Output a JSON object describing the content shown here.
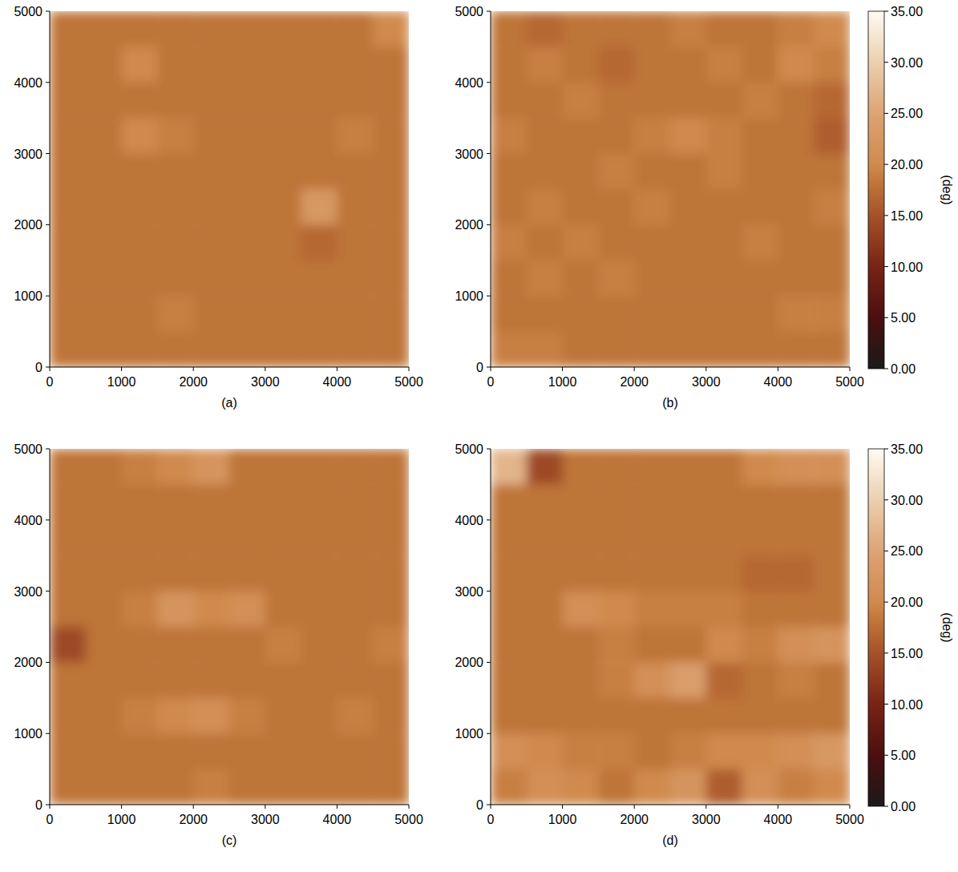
{
  "chart_data": [
    {
      "type": "heatmap",
      "title": "(a)",
      "xlim": [
        0,
        5000
      ],
      "ylim": [
        0,
        5000
      ],
      "xticks": [
        0,
        1000,
        2000,
        3000,
        4000,
        5000
      ],
      "yticks": [
        0,
        1000,
        2000,
        3000,
        4000,
        5000
      ],
      "colorbar_range": [
        0,
        35
      ],
      "cells": [
        [
          18,
          18,
          18,
          18,
          18,
          18,
          18,
          18,
          18,
          20
        ],
        [
          18,
          18,
          20,
          18,
          18,
          18,
          18,
          18,
          18,
          18
        ],
        [
          18,
          18,
          18,
          18,
          18,
          18,
          18,
          18,
          18,
          18
        ],
        [
          18,
          18,
          20,
          19,
          18,
          18,
          18,
          18,
          19,
          18
        ],
        [
          18,
          18,
          18,
          18,
          18,
          18,
          18,
          18,
          18,
          18
        ],
        [
          18,
          18,
          18,
          18,
          18,
          18,
          18,
          23,
          18,
          18
        ],
        [
          18,
          18,
          18,
          18,
          18,
          18,
          18,
          17,
          18,
          18
        ],
        [
          18,
          18,
          18,
          18,
          18,
          18,
          18,
          18,
          18,
          18
        ],
        [
          18,
          18,
          18,
          19,
          18,
          18,
          18,
          18,
          18,
          18
        ],
        [
          18,
          18,
          18,
          18,
          18,
          18,
          18,
          18,
          18,
          18
        ]
      ]
    },
    {
      "type": "heatmap",
      "title": "(b)",
      "xlim": [
        0,
        5000
      ],
      "ylim": [
        0,
        5000
      ],
      "xticks": [
        0,
        1000,
        2000,
        3000,
        4000,
        5000
      ],
      "yticks": [
        0,
        1000,
        2000,
        3000,
        4000,
        5000
      ],
      "colorbar_range": [
        0,
        35
      ],
      "colorbar_ticks": [
        {
          "value": 0,
          "label": "0.00"
        },
        {
          "value": 5,
          "label": "5.00"
        },
        {
          "value": 10,
          "label": "10.00"
        },
        {
          "value": 15,
          "label": "15.00"
        },
        {
          "value": 20,
          "label": "20.00"
        },
        {
          "value": 25,
          "label": "25.00"
        },
        {
          "value": 30,
          "label": "30.00"
        },
        {
          "value": 35,
          "label": "35.00"
        }
      ],
      "colorbar_label": "(deg)",
      "cells": [
        [
          18,
          17,
          18,
          18,
          18,
          19,
          18,
          18,
          19,
          20
        ],
        [
          18,
          19,
          18,
          17,
          18,
          18,
          19,
          18,
          20,
          19
        ],
        [
          18,
          18,
          19,
          18,
          18,
          18,
          18,
          19,
          18,
          17
        ],
        [
          19,
          18,
          18,
          18,
          19,
          20,
          19,
          18,
          18,
          16
        ],
        [
          18,
          18,
          18,
          19,
          18,
          18,
          19,
          18,
          18,
          18
        ],
        [
          18,
          19,
          18,
          18,
          19,
          18,
          18,
          18,
          18,
          19
        ],
        [
          19,
          18,
          19,
          18,
          18,
          18,
          18,
          19,
          18,
          18
        ],
        [
          18,
          19,
          18,
          19,
          18,
          18,
          18,
          18,
          18,
          18
        ],
        [
          18,
          18,
          18,
          18,
          18,
          18,
          18,
          18,
          19,
          19
        ],
        [
          19,
          19,
          18,
          18,
          18,
          18,
          18,
          18,
          18,
          18
        ]
      ]
    },
    {
      "type": "heatmap",
      "title": "(c)",
      "xlim": [
        0,
        5000
      ],
      "ylim": [
        0,
        5000
      ],
      "xticks": [
        0,
        1000,
        2000,
        3000,
        4000,
        5000
      ],
      "yticks": [
        0,
        1000,
        2000,
        3000,
        4000,
        5000
      ],
      "colorbar_range": [
        0,
        35
      ],
      "cells": [
        [
          18,
          18,
          19,
          20,
          22,
          18,
          18,
          18,
          18,
          18
        ],
        [
          18,
          18,
          18,
          18,
          18,
          18,
          18,
          18,
          18,
          18
        ],
        [
          18,
          18,
          18,
          18,
          18,
          18,
          18,
          18,
          18,
          18
        ],
        [
          18,
          18,
          18,
          18,
          18,
          18,
          18,
          18,
          18,
          18
        ],
        [
          18,
          18,
          19,
          22,
          20,
          21,
          18,
          18,
          18,
          18
        ],
        [
          14,
          18,
          18,
          18,
          18,
          18,
          19,
          18,
          18,
          19
        ],
        [
          18,
          18,
          18,
          18,
          18,
          18,
          18,
          18,
          18,
          18
        ],
        [
          18,
          18,
          19,
          20,
          21,
          19,
          18,
          18,
          19,
          18
        ],
        [
          18,
          18,
          18,
          18,
          18,
          18,
          18,
          18,
          18,
          18
        ],
        [
          18,
          18,
          18,
          18,
          19,
          18,
          18,
          18,
          18,
          18
        ]
      ]
    },
    {
      "type": "heatmap",
      "title": "(d)",
      "xlim": [
        0,
        5000
      ],
      "ylim": [
        0,
        5000
      ],
      "xticks": [
        0,
        1000,
        2000,
        3000,
        4000,
        5000
      ],
      "yticks": [
        0,
        1000,
        2000,
        3000,
        4000,
        5000
      ],
      "colorbar_range": [
        0,
        35
      ],
      "colorbar_ticks": [
        {
          "value": 0,
          "label": "0.00"
        },
        {
          "value": 5,
          "label": "5.00"
        },
        {
          "value": 10,
          "label": "10.00"
        },
        {
          "value": 15,
          "label": "15.00"
        },
        {
          "value": 20,
          "label": "20.00"
        },
        {
          "value": 25,
          "label": "25.00"
        },
        {
          "value": 30,
          "label": "30.00"
        },
        {
          "value": 35,
          "label": "35.00"
        }
      ],
      "colorbar_label": "(deg)",
      "cells": [
        [
          27,
          14,
          18,
          18,
          18,
          18,
          18,
          20,
          21,
          21
        ],
        [
          18,
          18,
          18,
          18,
          18,
          18,
          18,
          18,
          18,
          18
        ],
        [
          18,
          18,
          18,
          18,
          18,
          18,
          18,
          18,
          18,
          18
        ],
        [
          18,
          18,
          18,
          18,
          18,
          18,
          18,
          17,
          17,
          18
        ],
        [
          18,
          18,
          21,
          20,
          19,
          19,
          19,
          18,
          18,
          18
        ],
        [
          18,
          18,
          18,
          19,
          18,
          18,
          20,
          19,
          21,
          22
        ],
        [
          18,
          18,
          18,
          19,
          21,
          24,
          17,
          18,
          19,
          18
        ],
        [
          18,
          18,
          18,
          18,
          18,
          18,
          18,
          18,
          18,
          18
        ],
        [
          21,
          20,
          19,
          19,
          18,
          19,
          20,
          20,
          21,
          23
        ],
        [
          19,
          21,
          20,
          18,
          20,
          22,
          16,
          21,
          19,
          20
        ]
      ]
    }
  ]
}
